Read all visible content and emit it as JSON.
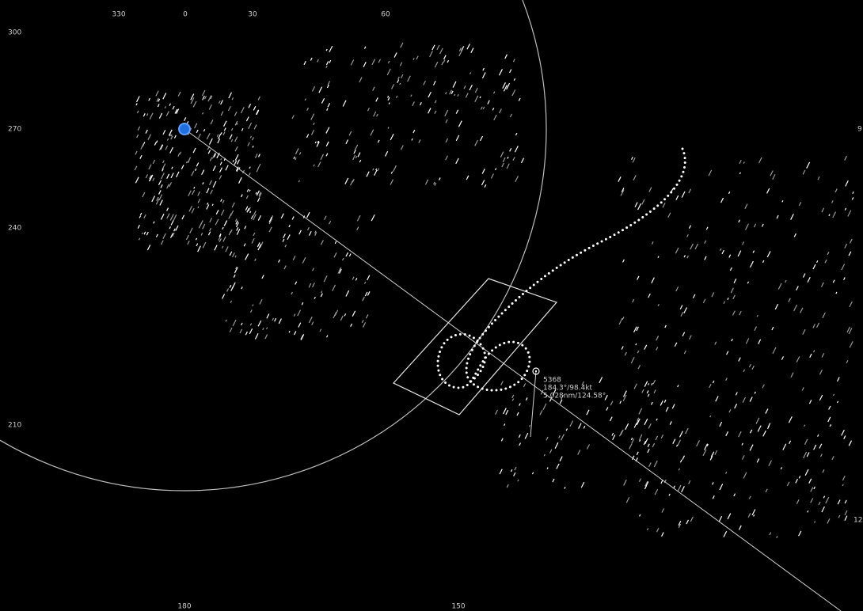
{
  "bearing_labels": {
    "top": [
      "330",
      "0",
      "30",
      "60"
    ],
    "left": [
      "300",
      "270",
      "240",
      "210"
    ],
    "right": [
      "9",
      "12"
    ],
    "bottom": [
      "180",
      "150"
    ]
  },
  "target": {
    "id": "5368",
    "lines": [
      "184.3°/98.4kt",
      "5.028nm/124.58°"
    ]
  }
}
